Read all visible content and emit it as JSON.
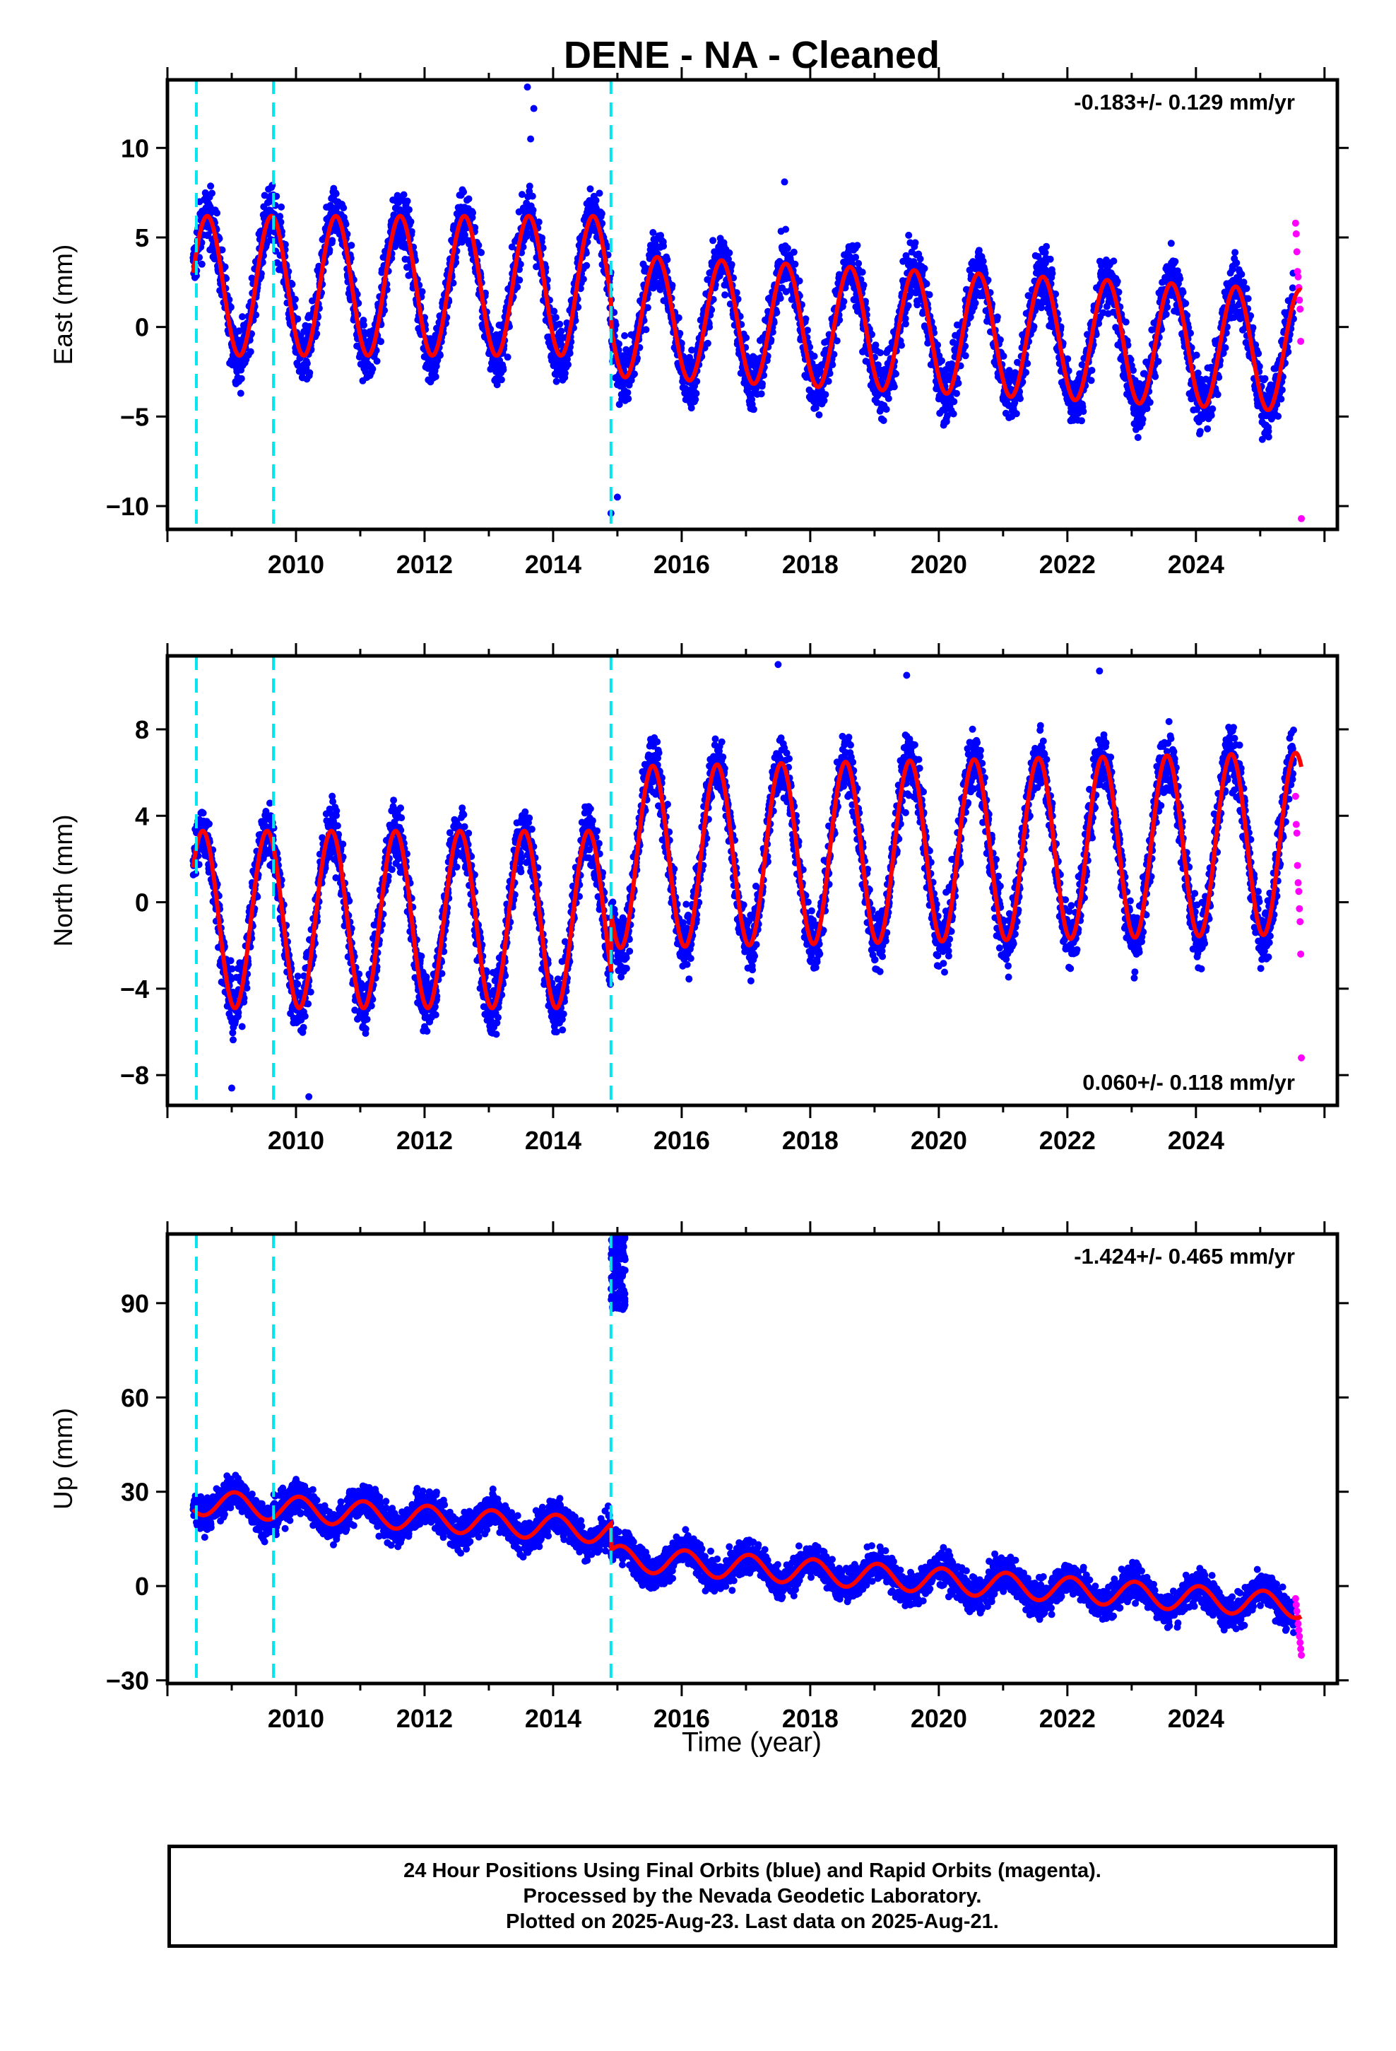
{
  "title": "DENE  - NA - Cleaned",
  "colors": {
    "final": "#0000ff",
    "rapid": "#ff00ff",
    "model": "#ff0000",
    "steps": "#00e5ee",
    "frame": "#000000"
  },
  "x_axis": {
    "label": "Time (year)",
    "range": [
      2008.0,
      2026.2
    ],
    "ticks": [
      "2010",
      "2012",
      "2014",
      "2016",
      "2018",
      "2020",
      "2022",
      "2024"
    ]
  },
  "chart_data": [
    {
      "type": "scatter",
      "component": "East",
      "ylabel": "East (mm)",
      "ylim": [
        -11.3,
        13.8
      ],
      "yticks": [
        "10",
        "5",
        "0",
        "−5",
        "−10"
      ],
      "rate_label": "-0.183+/- 0.129 mm/yr",
      "rate_position": "top-right",
      "step_epochs": [
        2008.45,
        2009.65,
        2014.9
      ],
      "series": [
        {
          "color": "blue",
          "x_start": 2008.4,
          "x_end": 2025.52
        },
        {
          "color": "magenta",
          "x_start": 2025.55,
          "x_end": 2025.64
        },
        {
          "color": "red",
          "x_start": 2008.4,
          "x_end": 2025.64
        }
      ],
      "model": {
        "segments": [
          {
            "x_start": 2008.4,
            "x_end": 2014.9,
            "offset": 2.3,
            "amplitude": 3.9,
            "trend": 0.0,
            "phase": 0.62
          },
          {
            "x_start": 2014.9,
            "x_end": 2025.64,
            "offset": 0.25,
            "amplitude": 3.4,
            "trend": -0.183,
            "phase": 0.62
          }
        ]
      },
      "rapid_values": [
        5.8,
        5.2,
        4.2,
        3.1,
        2.8,
        2.2,
        1.5,
        1.0,
        -0.8,
        -10.7
      ],
      "outliers": [
        [
          2013.6,
          13.4
        ],
        [
          2013.7,
          12.2
        ],
        [
          2013.65,
          10.5
        ],
        [
          2014.9,
          -10.4
        ],
        [
          2015.0,
          -9.5
        ],
        [
          2017.6,
          8.1
        ]
      ]
    },
    {
      "type": "scatter",
      "component": "North",
      "ylabel": "North (mm)",
      "ylim": [
        -9.4,
        11.4
      ],
      "yticks": [
        "8",
        "4",
        "0",
        "−4",
        "−8"
      ],
      "rate_label": "0.060+/- 0.118 mm/yr",
      "rate_position": "bottom-right",
      "step_epochs": [
        2008.45,
        2009.65,
        2014.9
      ],
      "series": [
        {
          "color": "blue",
          "x_start": 2008.4,
          "x_end": 2025.52
        },
        {
          "color": "magenta",
          "x_start": 2025.55,
          "x_end": 2025.64
        },
        {
          "color": "red",
          "x_start": 2008.4,
          "x_end": 2025.64
        }
      ],
      "model": {
        "segments": [
          {
            "x_start": 2008.4,
            "x_end": 2014.9,
            "offset": -0.8,
            "amplitude": 4.1,
            "trend": 0.0,
            "phase": 0.55
          },
          {
            "x_start": 2014.9,
            "x_end": 2025.64,
            "offset": 2.2,
            "amplitude": 4.2,
            "trend": 0.06,
            "phase": 0.55
          }
        ]
      },
      "rapid_values": [
        4.9,
        3.6,
        3.2,
        1.7,
        0.9,
        0.5,
        -0.3,
        -0.9,
        -2.4,
        -7.2
      ],
      "outliers": [
        [
          2017.5,
          11.0
        ],
        [
          2022.5,
          10.7
        ],
        [
          2019.5,
          10.5
        ],
        [
          2009.0,
          -8.6
        ],
        [
          2010.2,
          -9.0
        ]
      ]
    },
    {
      "type": "scatter",
      "component": "Up",
      "ylabel": "Up (mm)",
      "ylim": [
        -31,
        112
      ],
      "yticks": [
        "90",
        "60",
        "30",
        "0",
        "−30"
      ],
      "rate_label": "-1.424+/- 0.465 mm/yr",
      "rate_position": "top-right",
      "step_epochs": [
        2008.45,
        2009.65,
        2014.9
      ],
      "series": [
        {
          "color": "blue",
          "x_start": 2008.4,
          "x_end": 2025.52
        },
        {
          "color": "magenta",
          "x_start": 2025.55,
          "x_end": 2025.64
        },
        {
          "color": "red",
          "x_start": 2008.4,
          "x_end": 2025.64
        }
      ],
      "model": {
        "segments": [
          {
            "x_start": 2008.4,
            "x_end": 2014.9,
            "offset": 14.5,
            "amplitude": 4.0,
            "trend": -1.424,
            "phase": 0.05
          },
          {
            "x_start": 2014.9,
            "x_end": 2025.64,
            "offset": 6.0,
            "amplitude": 4.0,
            "trend": -1.424,
            "phase": 0.05
          }
        ]
      },
      "rapid_values": [
        -4,
        -6,
        -8,
        -10,
        -12,
        -14,
        -16,
        -18,
        -20,
        -22
      ],
      "cluster": {
        "x_start": 2014.9,
        "x_end": 2015.12,
        "y_min": 88,
        "y_max": 111
      }
    }
  ],
  "caption": {
    "line1": "24 Hour Positions Using Final Orbits (blue) and Rapid Orbits (magenta).",
    "line2": "Processed by the Nevada Geodetic Laboratory.",
    "line3": "Plotted on 2025-Aug-23. Last data on 2025-Aug-21."
  }
}
